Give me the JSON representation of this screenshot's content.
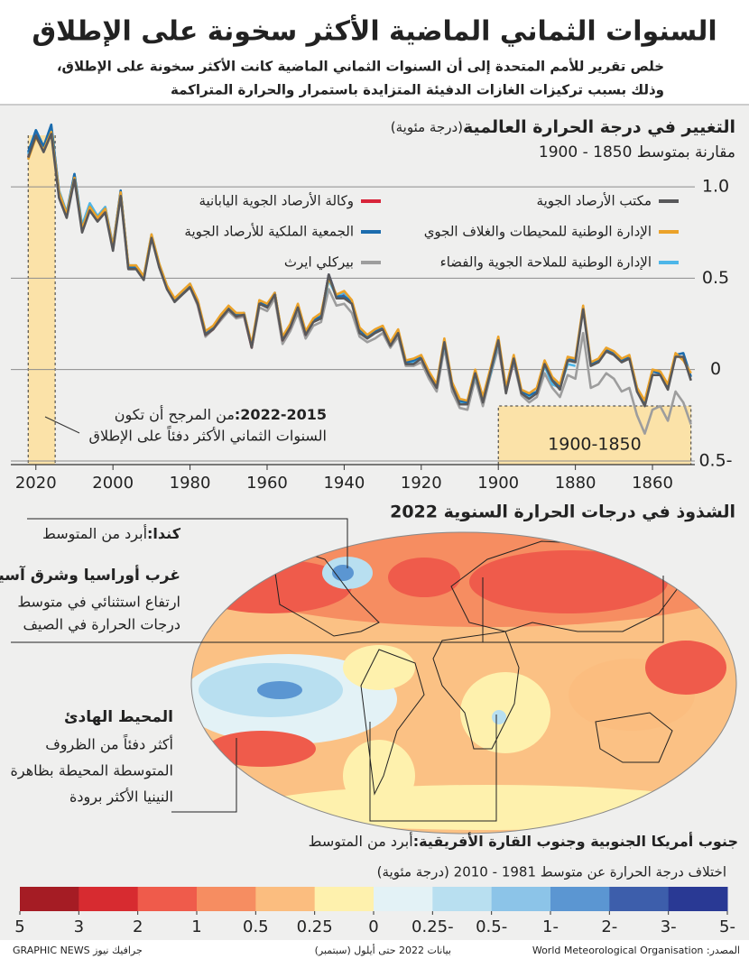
{
  "header": {
    "title": "السنوات الثماني الماضية الأكثر سخونة على الإطلاق",
    "subtitle": [
      "خلص تقرير للأمم المتحدة إلى أن السنوات الثماني الماضية كانت الأكثر سخونة على الإطلاق،",
      "وذلك بسبب تركيزات الغازات الدفيئة المتزايدة باستمرار والحرارة المتراكمة"
    ]
  },
  "chart_data": {
    "type": "line",
    "title": "التغيير في درجة الحرارة العالمية",
    "unit": "(درجة مئوية)",
    "subtitle": "مقارنة بمتوسط 1850 - 1900",
    "x": [
      1850,
      1852,
      1854,
      1856,
      1858,
      1860,
      1862,
      1864,
      1866,
      1868,
      1870,
      1872,
      1874,
      1876,
      1878,
      1880,
      1882,
      1884,
      1886,
      1888,
      1890,
      1892,
      1894,
      1896,
      1898,
      1900,
      1902,
      1904,
      1906,
      1908,
      1910,
      1912,
      1914,
      1916,
      1918,
      1920,
      1922,
      1924,
      1926,
      1928,
      1930,
      1932,
      1934,
      1936,
      1938,
      1940,
      1942,
      1944,
      1946,
      1948,
      1950,
      1952,
      1954,
      1956,
      1958,
      1960,
      1962,
      1964,
      1966,
      1968,
      1970,
      1972,
      1974,
      1976,
      1978,
      1980,
      1982,
      1984,
      1986,
      1988,
      1990,
      1992,
      1994,
      1996,
      1998,
      2000,
      2002,
      2004,
      2006,
      2008,
      2010,
      2012,
      2014,
      2016,
      2018,
      2020,
      2022
    ],
    "series": [
      {
        "name": "مكتب الأرصاد الجوية",
        "color": "#58585a",
        "values": [
          -0.06,
          0.07,
          0.07,
          -0.11,
          -0.03,
          -0.03,
          -0.2,
          -0.12,
          0.06,
          0.04,
          0.08,
          0.1,
          0.04,
          0.02,
          0.33,
          0.04,
          0.05,
          -0.11,
          -0.06,
          0.03,
          -0.13,
          -0.16,
          -0.13,
          0.06,
          -0.13,
          0.16,
          -0.01,
          -0.18,
          -0.02,
          -0.19,
          -0.19,
          -0.09,
          0.15,
          -0.1,
          -0.03,
          0.06,
          0.03,
          0.03,
          0.2,
          0.13,
          0.22,
          0.2,
          0.17,
          0.2,
          0.36,
          0.39,
          0.39,
          0.52,
          0.28,
          0.26,
          0.19,
          0.34,
          0.23,
          0.16,
          0.41,
          0.34,
          0.36,
          0.12,
          0.3,
          0.29,
          0.33,
          0.28,
          0.22,
          0.19,
          0.36,
          0.45,
          0.41,
          0.37,
          0.44,
          0.56,
          0.72,
          0.49,
          0.55,
          0.55,
          0.95,
          0.65,
          0.86,
          0.81,
          0.87,
          0.75,
          1.04,
          0.83,
          0.94,
          1.29,
          1.19,
          1.28,
          1.16
        ]
      },
      {
        "name": "الإدارة الوطنية للمحيطات والغلاف الجوي",
        "color": "#eba229",
        "values": [
          -0.02,
          0.05,
          0.09,
          -0.08,
          -0.01,
          0.0,
          -0.17,
          -0.1,
          0.08,
          0.06,
          0.1,
          0.12,
          0.06,
          0.04,
          0.35,
          0.06,
          0.07,
          -0.08,
          -0.04,
          0.05,
          -0.1,
          -0.13,
          -0.11,
          0.08,
          -0.1,
          0.18,
          0.01,
          -0.15,
          0.0,
          -0.17,
          -0.16,
          -0.07,
          0.17,
          -0.08,
          -0.01,
          0.08,
          0.06,
          0.05,
          0.22,
          0.15,
          0.24,
          0.22,
          0.19,
          0.23,
          0.38,
          0.43,
          0.41,
          0.5,
          0.31,
          0.28,
          0.21,
          0.36,
          0.25,
          0.18,
          0.42,
          0.36,
          0.38,
          0.14,
          0.31,
          0.31,
          0.35,
          0.3,
          0.24,
          0.21,
          0.38,
          0.47,
          0.43,
          0.39,
          0.46,
          0.58,
          0.74,
          0.51,
          0.57,
          0.57,
          0.97,
          0.67,
          0.88,
          0.83,
          0.89,
          0.77,
          1.05,
          0.85,
          0.97,
          1.3,
          1.2,
          1.27,
          1.15
        ]
      },
      {
        "name": "الإدارة الوطنية للملاحة الجوية والفضاء",
        "color": "#4db6e8",
        "values": [
          null,
          null,
          null,
          null,
          null,
          null,
          null,
          null,
          null,
          null,
          null,
          null,
          null,
          null,
          null,
          0.02,
          0.03,
          -0.1,
          -0.08,
          0.02,
          -0.12,
          -0.15,
          -0.12,
          0.05,
          -0.11,
          0.15,
          -0.02,
          -0.17,
          -0.03,
          -0.18,
          -0.18,
          -0.08,
          0.14,
          -0.09,
          -0.02,
          0.07,
          0.04,
          0.04,
          0.21,
          0.14,
          0.23,
          0.21,
          0.18,
          0.21,
          0.37,
          0.42,
          0.4,
          0.49,
          0.3,
          0.27,
          0.2,
          0.35,
          0.24,
          0.17,
          0.42,
          0.35,
          0.37,
          0.13,
          0.31,
          0.3,
          0.34,
          0.29,
          0.23,
          0.2,
          0.37,
          0.47,
          0.42,
          0.38,
          0.46,
          0.58,
          0.74,
          0.51,
          0.57,
          0.57,
          0.97,
          0.67,
          0.89,
          0.84,
          0.91,
          0.79,
          1.07,
          0.86,
          0.98,
          1.33,
          1.22,
          1.31,
          1.18
        ]
      },
      {
        "name": "وكالة الأرصاد الجوية اليابانية",
        "color": "#d8243a",
        "values": [
          null,
          null,
          null,
          null,
          null,
          null,
          null,
          null,
          null,
          null,
          null,
          null,
          null,
          null,
          null,
          null,
          null,
          null,
          null,
          null,
          null,
          -0.14,
          -0.12,
          0.05,
          -0.12,
          0.15,
          -0.01,
          -0.17,
          -0.02,
          -0.18,
          -0.18,
          -0.08,
          0.15,
          -0.09,
          -0.02,
          0.07,
          0.04,
          0.04,
          0.21,
          0.14,
          0.23,
          0.21,
          0.18,
          0.21,
          0.37,
          0.41,
          0.4,
          0.52,
          0.29,
          0.27,
          0.19,
          0.35,
          0.23,
          0.16,
          0.42,
          0.35,
          0.37,
          0.12,
          0.3,
          0.29,
          0.34,
          0.28,
          0.22,
          0.19,
          0.36,
          0.46,
          0.42,
          0.38,
          0.45,
          0.57,
          0.73,
          0.5,
          0.56,
          0.56,
          0.96,
          0.66,
          0.87,
          0.82,
          0.88,
          0.76,
          1.05,
          0.84,
          0.96,
          1.3,
          1.2,
          1.29,
          1.16
        ]
      },
      {
        "name": "الجمعية الملكية للأرصاد الجوية",
        "color": "#1b6cae",
        "values": [
          -0.04,
          0.09,
          0.08,
          -0.09,
          -0.02,
          -0.01,
          -0.18,
          -0.1,
          0.07,
          0.05,
          0.09,
          0.11,
          0.05,
          0.03,
          0.34,
          0.05,
          0.06,
          -0.09,
          -0.05,
          0.04,
          -0.12,
          -0.14,
          -0.12,
          0.07,
          -0.12,
          0.17,
          0.0,
          -0.16,
          -0.01,
          -0.18,
          -0.17,
          -0.08,
          0.16,
          -0.09,
          -0.02,
          0.07,
          0.05,
          0.04,
          0.21,
          0.14,
          0.23,
          0.21,
          0.18,
          0.22,
          0.37,
          0.4,
          0.4,
          0.52,
          0.29,
          0.27,
          0.2,
          0.35,
          0.24,
          0.17,
          0.42,
          0.35,
          0.37,
          0.13,
          0.31,
          0.3,
          0.34,
          0.29,
          0.23,
          0.2,
          0.37,
          0.46,
          0.42,
          0.38,
          0.45,
          0.57,
          0.73,
          0.5,
          0.56,
          0.56,
          0.98,
          0.67,
          0.88,
          0.83,
          0.89,
          0.77,
          1.07,
          0.85,
          0.97,
          1.34,
          1.22,
          1.31,
          1.19
        ]
      },
      {
        "name": "بيركلي ايرث",
        "color": "#9d9d9d",
        "values": [
          -0.3,
          -0.18,
          -0.12,
          -0.28,
          -0.2,
          -0.22,
          -0.35,
          -0.25,
          -0.1,
          -0.12,
          -0.05,
          -0.02,
          -0.08,
          -0.1,
          0.2,
          -0.05,
          -0.03,
          -0.15,
          -0.1,
          -0.02,
          -0.15,
          -0.18,
          -0.14,
          0.04,
          -0.12,
          0.12,
          -0.03,
          -0.2,
          -0.05,
          -0.22,
          -0.21,
          -0.12,
          0.12,
          -0.12,
          -0.05,
          0.04,
          0.02,
          0.02,
          0.18,
          0.12,
          0.2,
          0.17,
          0.15,
          0.18,
          0.31,
          0.36,
          0.35,
          0.44,
          0.26,
          0.24,
          0.17,
          0.31,
          0.21,
          0.14,
          0.39,
          0.32,
          0.34,
          0.12,
          0.29,
          0.28,
          0.32,
          0.27,
          0.22,
          0.18,
          0.35,
          0.45,
          0.41,
          0.37,
          0.45,
          0.56,
          0.73,
          0.5,
          0.56,
          0.57,
          0.97,
          0.68,
          0.89,
          0.84,
          0.9,
          0.78,
          1.07,
          0.86,
          0.98,
          1.32,
          1.21,
          1.29,
          1.17
        ]
      }
    ],
    "xlim": [
      2026.5,
      1849
    ],
    "xticks": [
      2020,
      2000,
      1980,
      1960,
      1940,
      1920,
      1900,
      1880,
      1860
    ],
    "ylim": [
      -0.52,
      1.43
    ],
    "yticks": [
      {
        "value": 1,
        "label": "1.0"
      },
      0.5,
      0,
      {
        "value": -0.5,
        "label": "0.5-"
      }
    ],
    "grid": true,
    "highlights": [
      {
        "range": [
          2015,
          2022
        ],
        "label": "2022-2015:",
        "note": [
          "من المرجح أن تكون",
          "السنوات الثماني الأكثر دفئاً على الإطلاق"
        ]
      },
      {
        "range": [
          1850,
          1900
        ],
        "label": "1900-1850"
      }
    ]
  },
  "map": {
    "title": "الشذوذ في درجات الحرارة السنوية 2022",
    "annotations": [
      {
        "title": "كندا:",
        "lines": [
          "أبرد من المتوسط"
        ]
      },
      {
        "title": "غرب أوراسيا وشرق آسيا",
        "lines": [
          "ارتفاع استثنائي في متوسط",
          "درجات الحرارة في الصيف"
        ]
      },
      {
        "title": "المحيط الهادئ",
        "lines": [
          "أكثر دفئاً من الظروف",
          "المتوسطة المحيطة بظاهرة",
          "النينيا الأكثر برودة"
        ]
      },
      {
        "title": "جنوب أمريكا الجنوبية وجنوب القارة الأفريقية:",
        "lines": [
          "أبرد من المتوسط"
        ]
      }
    ],
    "scale": {
      "title": "اختلاف درجة الحرارة عن متوسط 1981 - 2010 (درجة مئوية)",
      "colors": [
        "#a51c24",
        "#d72b30",
        "#ef5b4b",
        "#f68d61",
        "#fbbd7f",
        "#fef1ad",
        "#e3f2f6",
        "#b8dff0",
        "#8cc4e8",
        "#5b96d2",
        "#3d5eab",
        "#293994"
      ],
      "ticks": [
        5,
        3,
        2,
        1,
        0.5,
        0.25,
        0,
        {
          "value": -0.25,
          "label": "0.25-"
        },
        {
          "value": -0.5,
          "label": "0.5-"
        },
        {
          "value": -1,
          "label": "1-"
        },
        {
          "value": -2,
          "label": "2-"
        },
        {
          "value": -3,
          "label": "3-"
        },
        {
          "value": -5,
          "label": "5-"
        }
      ]
    }
  },
  "footer": {
    "source": "المصدر: World Meteorological Organisation",
    "note": "بيانات 2022 حتى أيلول (سبتمبر)",
    "credit": "GRAPHIC NEWS جرافيك نيوز"
  }
}
